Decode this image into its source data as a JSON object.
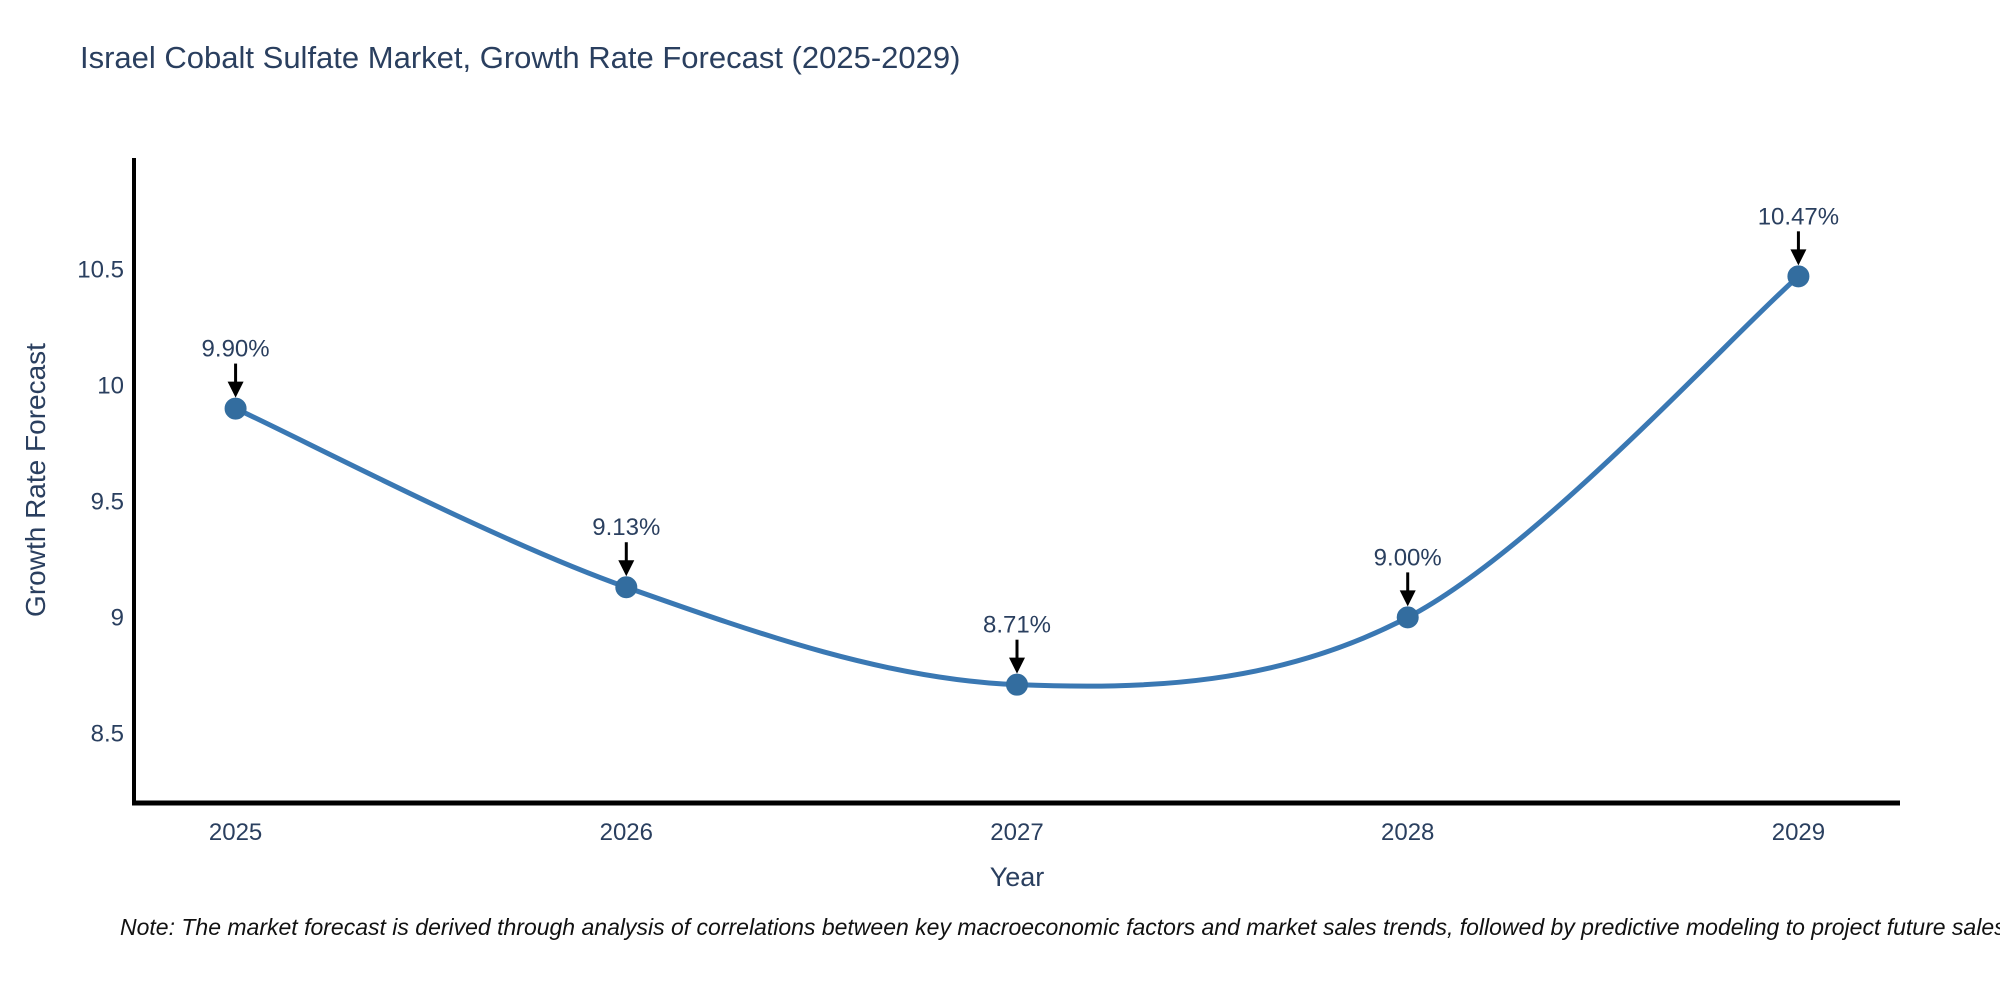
{
  "chart_data": {
    "type": "line",
    "title": "Israel Cobalt Sulfate Market, Growth Rate Forecast (2025-2029)",
    "xlabel": "Year",
    "ylabel": "Growth Rate Forecast",
    "x": [
      2025,
      2026,
      2027,
      2028,
      2029
    ],
    "series": [
      {
        "name": "Growth Rate Forecast",
        "values": [
          9.9,
          9.13,
          8.71,
          9.0,
          10.47
        ],
        "point_labels": [
          "9.90%",
          "9.13%",
          "8.71%",
          "9.00%",
          "10.47%"
        ]
      }
    ],
    "xtick_labels": [
      "2025",
      "2026",
      "2027",
      "2028",
      "2029"
    ],
    "ytick_values": [
      8.5,
      9,
      9.5,
      10,
      10.5
    ],
    "ytick_labels": [
      "8.5",
      "9",
      "9.5",
      "10",
      "10.5"
    ],
    "xlim": [
      2024.74,
      2029.26
    ],
    "ylim": [
      8.2,
      10.98
    ],
    "line_shape": "spline",
    "grid": false,
    "legend": "none",
    "annotation_style": "label-with-down-arrow",
    "colors": {
      "line": "#3a78b3",
      "marker": "#336d9f",
      "annotation_text": "#2a3f5f",
      "annotation_arrow": "#000000",
      "axis_text": "#2a3f5f",
      "spine": "#000000",
      "note_text": "#111111",
      "background": "#ffffff"
    },
    "note": "Note: The market forecast is derived through analysis of correlations between key macroeconomic factors and market sales trends, followed by predictive modeling to project future sales."
  }
}
